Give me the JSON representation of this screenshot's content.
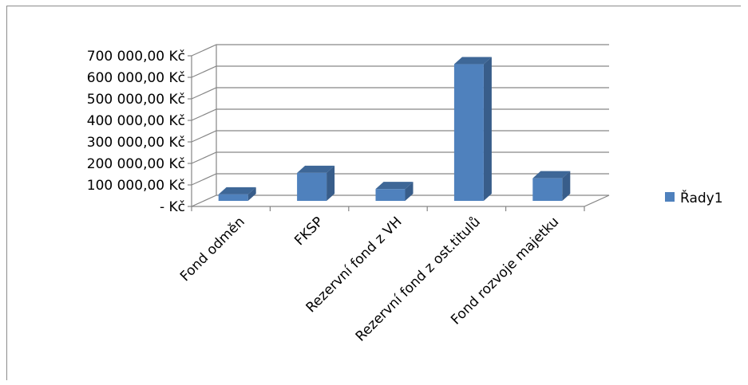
{
  "chart_data": {
    "type": "bar",
    "title": "",
    "xlabel": "",
    "ylabel": "",
    "categories": [
      "Fond odměn",
      "FKSP",
      "Rezervní fond z VH",
      "Rezervní fond z ost.titulů",
      "Fond rozvoje majetku"
    ],
    "series": [
      {
        "name": "Řady1",
        "values": [
          30000,
          130000,
          55000,
          635000,
          105000
        ],
        "color": "#4f81bd"
      }
    ],
    "ylim": [
      0,
      700000
    ],
    "y_ticks": [
      0,
      100000,
      200000,
      300000,
      400000,
      500000,
      600000,
      700000
    ],
    "y_tick_labels": [
      "-  Kč",
      "100 000,00 Kč",
      "200 000,00 Kč",
      "300 000,00 Kč",
      "400 000,00 Kč",
      "500 000,00 Kč",
      "600 000,00 Kč",
      "700 000,00 Kč"
    ],
    "grid": true,
    "legend_position": "right",
    "style": "3d-column"
  }
}
